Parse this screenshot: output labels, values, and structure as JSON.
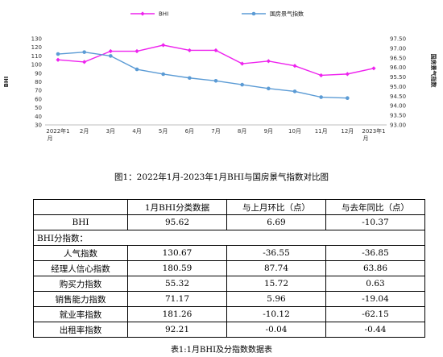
{
  "chart_data": {
    "type": "line",
    "categories": [
      "2022年1月",
      "2月",
      "3月",
      "4月",
      "5月",
      "6月",
      "7月",
      "8月",
      "9月",
      "10月",
      "11月",
      "12月",
      "2023年1月"
    ],
    "series": [
      {
        "name": "BHI",
        "axis": "left",
        "color": "#ee22ee",
        "marker": "diamond",
        "values": [
          105.5,
          103,
          115.5,
          115.5,
          122.5,
          116.5,
          116.5,
          101,
          104,
          98.5,
          87.5,
          89,
          95.6
        ]
      },
      {
        "name": "国房景气指数",
        "axis": "right",
        "color": "#5b9bd5",
        "marker": "circle",
        "values": [
          96.7,
          96.8,
          96.6,
          95.9,
          95.65,
          95.45,
          95.3,
          95.1,
          94.9,
          94.75,
          94.45,
          94.4,
          null
        ]
      }
    ],
    "ylabel_left": "BHI",
    "ylabel_right": "国房景气指数",
    "ylim_left": [
      30,
      130
    ],
    "yticks_left": [
      30,
      40,
      50,
      60,
      70,
      80,
      90,
      100,
      110,
      120,
      130
    ],
    "ylim_right": [
      93.0,
      97.5
    ],
    "yticks_right": [
      "93.00",
      "93.50",
      "94.00",
      "94.50",
      "95.00",
      "95.50",
      "96.00",
      "96.50",
      "97.00",
      "97.50"
    ],
    "legend_position": "top-center",
    "grid": false
  },
  "figure_caption": "图1：2022年1月-2023年1月BHI与国房景气指数对比图",
  "table": {
    "headers": [
      "",
      "1月BHI分类数据",
      "与上月环比（点）",
      "与去年同比（点）"
    ],
    "rows": [
      {
        "name": "BHI",
        "values": [
          "95.62",
          "6.69",
          "-10.37"
        ]
      },
      {
        "name": "BHI分指数：",
        "values": []
      },
      {
        "name": "人气指数",
        "values": [
          "130.67",
          "-36.55",
          "-36.85"
        ]
      },
      {
        "name": "经理人信心指数",
        "values": [
          "180.59",
          "87.74",
          "63.86"
        ]
      },
      {
        "name": "购买力指数",
        "values": [
          "55.32",
          "15.72",
          "0.63"
        ]
      },
      {
        "name": "销售能力指数",
        "values": [
          "71.17",
          "5.96",
          "-19.04"
        ]
      },
      {
        "name": "就业率指数",
        "values": [
          "181.26",
          "-10.12",
          "-62.15"
        ]
      },
      {
        "name": "出租率指数",
        "values": [
          "92.21",
          "-0.04",
          "-0.44"
        ]
      }
    ]
  },
  "table_caption": "表1:1月BHI及分指数数据表"
}
